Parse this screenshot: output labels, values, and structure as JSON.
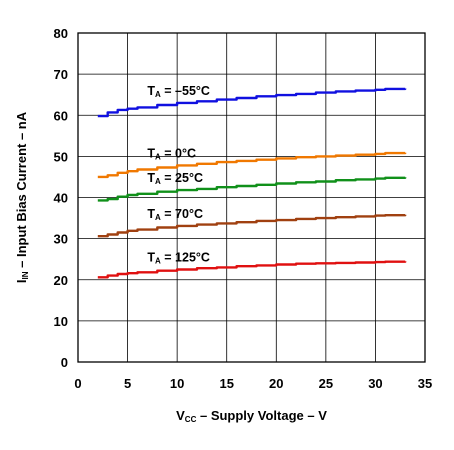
{
  "chart_data": {
    "type": "line",
    "xlabel": {
      "main": "V",
      "sub": "CC",
      "rest": " – Supply Voltage – V"
    },
    "ylabel": {
      "main": "I",
      "sub": "IN",
      "rest": " – Input Bias Current – nA"
    },
    "xlim": [
      0,
      35
    ],
    "ylim": [
      0,
      80
    ],
    "xticks": [
      0,
      5,
      10,
      15,
      20,
      25,
      30,
      35
    ],
    "yticks": [
      0,
      10,
      20,
      30,
      40,
      50,
      60,
      70,
      80
    ],
    "grid": true,
    "series": [
      {
        "name": "T_A = –55°C",
        "label_parts": {
          "main": "T",
          "sub": "A",
          "rest": " = –55°C"
        },
        "color": "#1010e0",
        "x": [
          2,
          3,
          4,
          5,
          6,
          8,
          10,
          12,
          14,
          16,
          18,
          20,
          22,
          24,
          26,
          28,
          30,
          31,
          33
        ],
        "y": [
          59.8,
          60.7,
          61.3,
          61.6,
          61.9,
          62.5,
          63.0,
          63.4,
          63.8,
          64.2,
          64.6,
          64.9,
          65.2,
          65.5,
          65.8,
          66.0,
          66.2,
          66.4,
          66.5
        ]
      },
      {
        "name": "T_A = 0°C",
        "label_parts": {
          "main": "T",
          "sub": "A",
          "rest": " = 0°C"
        },
        "color": "#f07800",
        "x": [
          2,
          3,
          4,
          5,
          6,
          8,
          10,
          12,
          14,
          16,
          18,
          20,
          22,
          24,
          26,
          28,
          30,
          31,
          33
        ],
        "y": [
          45.0,
          45.4,
          46.0,
          46.4,
          46.8,
          47.3,
          47.8,
          48.2,
          48.6,
          48.9,
          49.2,
          49.5,
          49.8,
          50.0,
          50.2,
          50.4,
          50.6,
          50.8,
          50.9
        ]
      },
      {
        "name": "T_A = 25°C",
        "label_parts": {
          "main": "T",
          "sub": "A",
          "rest": " = 25°C"
        },
        "color": "#10901a",
        "x": [
          2,
          3,
          4,
          5,
          6,
          8,
          10,
          12,
          14,
          16,
          18,
          20,
          22,
          24,
          26,
          28,
          30,
          31,
          33
        ],
        "y": [
          39.3,
          39.6,
          40.2,
          40.6,
          40.9,
          41.4,
          41.8,
          42.1,
          42.5,
          42.8,
          43.1,
          43.4,
          43.7,
          43.9,
          44.2,
          44.4,
          44.6,
          44.8,
          44.9
        ]
      },
      {
        "name": "T_A = 70°C",
        "label_parts": {
          "main": "T",
          "sub": "A",
          "rest": " = 70°C"
        },
        "color": "#a04010",
        "x": [
          2,
          3,
          4,
          5,
          6,
          8,
          10,
          12,
          14,
          16,
          18,
          20,
          22,
          24,
          26,
          28,
          30,
          31,
          33
        ],
        "y": [
          30.6,
          31.0,
          31.5,
          31.9,
          32.2,
          32.7,
          33.1,
          33.4,
          33.7,
          34.0,
          34.3,
          34.5,
          34.8,
          35.0,
          35.2,
          35.4,
          35.6,
          35.7,
          35.8
        ]
      },
      {
        "name": "T_A = 125°C",
        "label_parts": {
          "main": "T",
          "sub": "A",
          "rest": " = 125°C"
        },
        "color": "#e01010",
        "x": [
          2,
          3,
          4,
          5,
          6,
          8,
          10,
          12,
          14,
          16,
          18,
          20,
          22,
          24,
          26,
          28,
          30,
          31,
          33
        ],
        "y": [
          20.6,
          21.0,
          21.4,
          21.6,
          21.8,
          22.2,
          22.5,
          22.8,
          23.0,
          23.3,
          23.5,
          23.7,
          23.9,
          24.0,
          24.1,
          24.2,
          24.3,
          24.4,
          24.5
        ]
      }
    ]
  }
}
